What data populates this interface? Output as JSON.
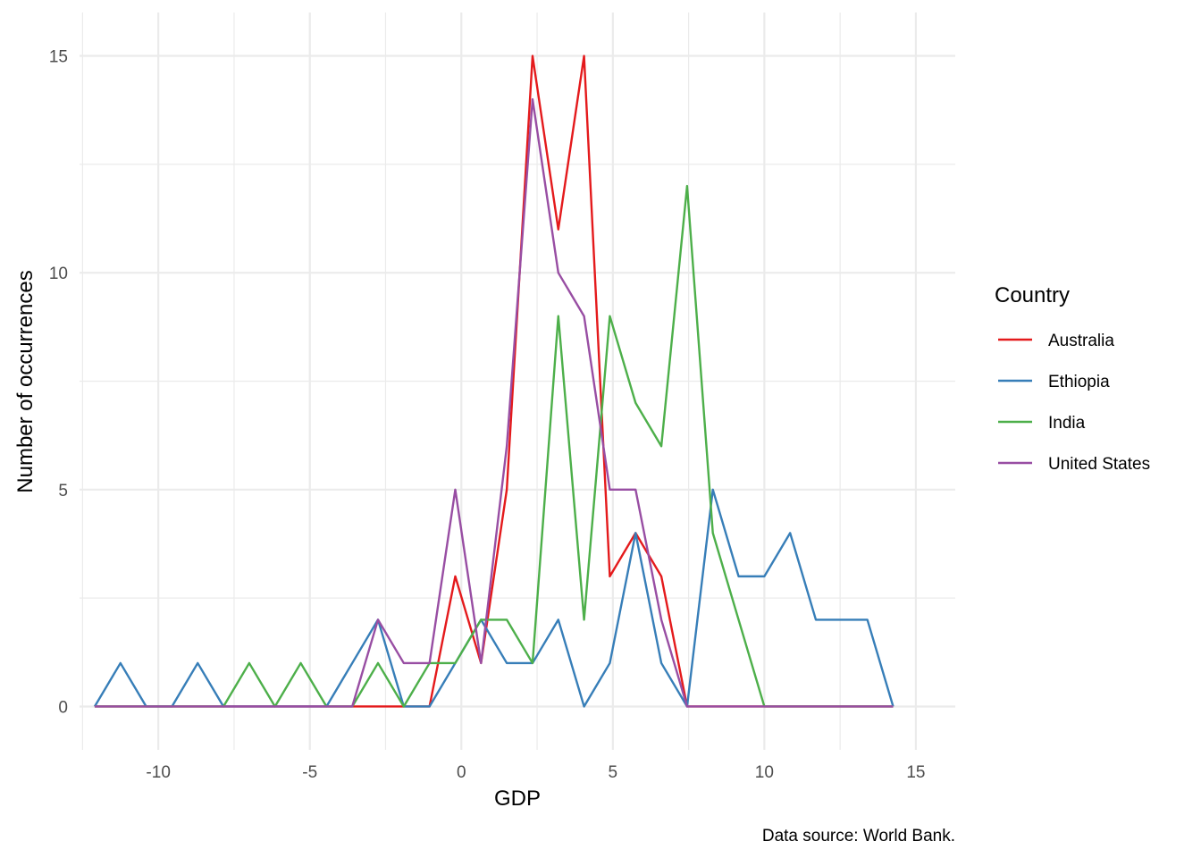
{
  "chart_data": {
    "type": "line",
    "xlabel": "GDP",
    "ylabel": "Number of occurrences",
    "caption": "Data source: World Bank.",
    "legend_title": "Country",
    "legend_position": "right",
    "grid": true,
    "xlim": [
      -12.6,
      16.3
    ],
    "ylim": [
      -1.0,
      16.0
    ],
    "x_ticks": [
      -10,
      -5,
      0,
      5,
      10,
      15
    ],
    "x_tick_labels": [
      "-10",
      "-5",
      "0",
      "5",
      "10",
      "15"
    ],
    "y_ticks": [
      0,
      5,
      10,
      15
    ],
    "y_tick_labels": [
      "0",
      "5",
      "10",
      "15"
    ],
    "x": [
      -12.1,
      -11.25,
      -10.4,
      -9.55,
      -8.7,
      -7.85,
      -7.0,
      -6.15,
      -5.3,
      -4.45,
      -3.6,
      -2.75,
      -1.9,
      -1.05,
      -0.2,
      0.65,
      1.5,
      2.35,
      3.2,
      4.05,
      4.9,
      5.75,
      6.6,
      7.45,
      8.3,
      9.15,
      10.0,
      10.85,
      11.7,
      12.55,
      13.4,
      14.25
    ],
    "series": [
      {
        "name": "Australia",
        "color": "#E41A1C",
        "values": [
          0,
          0,
          0,
          0,
          0,
          0,
          0,
          0,
          0,
          0,
          0,
          0,
          0,
          0,
          3,
          1,
          5,
          15,
          11,
          15,
          3,
          4,
          3,
          0,
          0,
          0,
          0,
          0,
          0,
          0,
          0,
          0
        ]
      },
      {
        "name": "Ethiopia",
        "color": "#377EB8",
        "values": [
          0,
          1,
          0,
          0,
          1,
          0,
          0,
          0,
          0,
          0,
          1,
          2,
          0,
          0,
          1,
          2,
          1,
          1,
          2,
          0,
          1,
          4,
          1,
          0,
          5,
          3,
          3,
          4,
          2,
          2,
          2,
          0
        ]
      },
      {
        "name": "India",
        "color": "#4DAF4A",
        "values": [
          0,
          0,
          0,
          0,
          0,
          0,
          1,
          0,
          1,
          0,
          0,
          1,
          0,
          1,
          1,
          2,
          2,
          1,
          9,
          2,
          9,
          7,
          6,
          12,
          4,
          2,
          0,
          0,
          0,
          0,
          0,
          0
        ]
      },
      {
        "name": "United States",
        "color": "#984EA3",
        "values": [
          0,
          0,
          0,
          0,
          0,
          0,
          0,
          0,
          0,
          0,
          0,
          2,
          1,
          1,
          5,
          1,
          6,
          14,
          10,
          9,
          5,
          5,
          2,
          0,
          0,
          0,
          0,
          0,
          0,
          0,
          0,
          0
        ]
      }
    ]
  }
}
